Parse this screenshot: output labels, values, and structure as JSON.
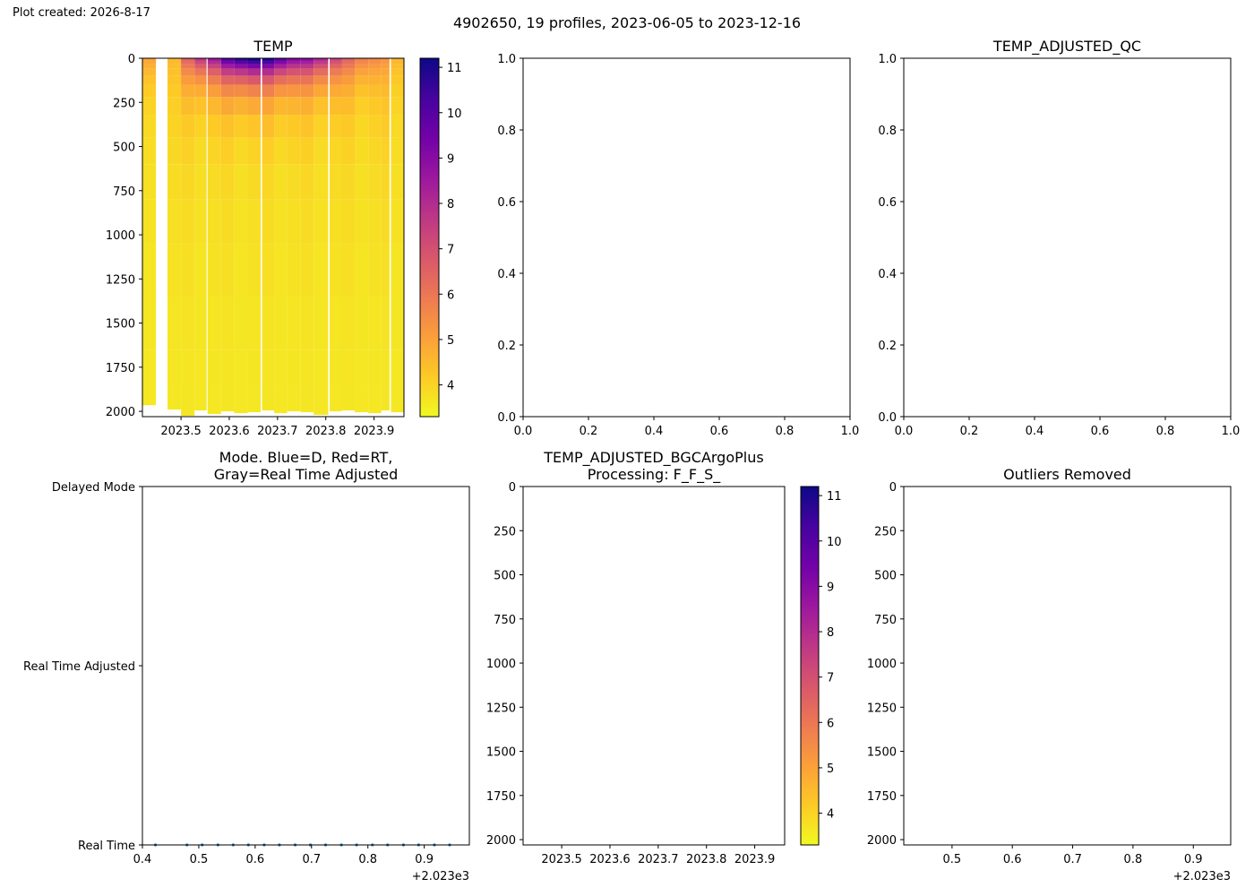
{
  "page": {
    "created": "Plot created: 2026-8-17",
    "suptitle": "4902650, 19 profiles, 2023-06-05 to 2023-12-16"
  },
  "colormap_stops": [
    "#f0f921",
    "#fdca26",
    "#fb9f3a",
    "#ed7953",
    "#d8576b",
    "#bd3786",
    "#9c179e",
    "#7201a8",
    "#46039f",
    "#0d0887"
  ],
  "chart_data": [
    {
      "id": "temp",
      "type": "heatmap",
      "title": "TEMP",
      "xlim": [
        2023.42,
        2023.962
      ],
      "ylim": [
        2030,
        0
      ],
      "xticks": [
        2023.5,
        2023.6,
        2023.7,
        2023.8,
        2023.9
      ],
      "xticklabels": [
        "2023.5",
        "2023.6",
        "2023.7",
        "2023.8",
        "2023.9"
      ],
      "yticks": [
        0,
        250,
        500,
        750,
        1000,
        1250,
        1500,
        1750,
        2000
      ],
      "yticklabels": [
        "0",
        "250",
        "500",
        "750",
        "1000",
        "1250",
        "1500",
        "1750",
        "2000"
      ],
      "colorbar": {
        "min": 3.3,
        "max": 11.2,
        "ticks": [
          4,
          5,
          6,
          7,
          8,
          9,
          10,
          11
        ],
        "ticklabels": [
          "4",
          "5",
          "6",
          "7",
          "8",
          "9",
          "10",
          "11"
        ]
      },
      "profiles": [
        {
          "time": 2023.423,
          "x0": 2023.42,
          "x1": 2023.448,
          "maxdepth": 1965,
          "surface": 4.6
        },
        {
          "time": 2023.479,
          "x0": 2023.472,
          "x1": 2023.5,
          "maxdepth": 1990,
          "surface": 3.9
        },
        {
          "time": 2023.506,
          "x0": 2023.5,
          "x1": 2023.528,
          "maxdepth": 2025,
          "surface": 5.8
        },
        {
          "time": 2023.534,
          "x0": 2023.528,
          "x1": 2023.553,
          "maxdepth": 1995,
          "surface": 7.5
        },
        {
          "time": 2023.561,
          "x0": 2023.555,
          "x1": 2023.583,
          "maxdepth": 2015,
          "surface": 8.2
        },
        {
          "time": 2023.588,
          "x0": 2023.583,
          "x1": 2023.61,
          "maxdepth": 2000,
          "surface": 9.6
        },
        {
          "time": 2023.616,
          "x0": 2023.61,
          "x1": 2023.638,
          "maxdepth": 2010,
          "surface": 10.8
        },
        {
          "time": 2023.643,
          "x0": 2023.638,
          "x1": 2023.665,
          "maxdepth": 2005,
          "surface": 11.0
        },
        {
          "time": 2023.671,
          "x0": 2023.668,
          "x1": 2023.693,
          "maxdepth": 1995,
          "surface": 10.5
        },
        {
          "time": 2023.698,
          "x0": 2023.693,
          "x1": 2023.72,
          "maxdepth": 2010,
          "surface": 9.9
        },
        {
          "time": 2023.725,
          "x0": 2023.72,
          "x1": 2023.748,
          "maxdepth": 2000,
          "surface": 8.8
        },
        {
          "time": 2023.753,
          "x0": 2023.748,
          "x1": 2023.775,
          "maxdepth": 2005,
          "surface": 8.4
        },
        {
          "time": 2023.78,
          "x0": 2023.775,
          "x1": 2023.805,
          "maxdepth": 2020,
          "surface": 8.0
        },
        {
          "time": 2023.808,
          "x0": 2023.808,
          "x1": 2023.833,
          "maxdepth": 2000,
          "surface": 6.9
        },
        {
          "time": 2023.835,
          "x0": 2023.833,
          "x1": 2023.86,
          "maxdepth": 1995,
          "surface": 5.8
        },
        {
          "time": 2023.863,
          "x0": 2023.86,
          "x1": 2023.888,
          "maxdepth": 2005,
          "surface": 5.5
        },
        {
          "time": 2023.89,
          "x0": 2023.888,
          "x1": 2023.915,
          "maxdepth": 2010,
          "surface": 5.0
        },
        {
          "time": 2023.918,
          "x0": 2023.915,
          "x1": 2023.932,
          "maxdepth": 1995,
          "surface": 4.5
        },
        {
          "time": 2023.945,
          "x0": 2023.935,
          "x1": 2023.962,
          "maxdepth": 2005,
          "surface": 4.2
        }
      ]
    },
    {
      "id": "qc1",
      "type": "line",
      "title": "",
      "xlim": [
        0,
        1
      ],
      "ylim": [
        0,
        1
      ],
      "xticks": [
        0,
        0.2,
        0.4,
        0.6,
        0.8,
        1.0
      ],
      "xticklabels": [
        "0.0",
        "0.2",
        "0.4",
        "0.6",
        "0.8",
        "1.0"
      ],
      "yticks": [
        0,
        0.2,
        0.4,
        0.6,
        0.8,
        1.0
      ],
      "yticklabels": [
        "0.0",
        "0.2",
        "0.4",
        "0.6",
        "0.8",
        "1.0"
      ]
    },
    {
      "id": "qc2",
      "type": "line",
      "title": "TEMP_ADJUSTED_QC",
      "xlim": [
        0,
        1
      ],
      "ylim": [
        0,
        1
      ],
      "xticks": [
        0,
        0.2,
        0.4,
        0.6,
        0.8,
        1.0
      ],
      "xticklabels": [
        "0.0",
        "0.2",
        "0.4",
        "0.6",
        "0.8",
        "1.0"
      ],
      "yticks": [
        0,
        0.2,
        0.4,
        0.6,
        0.8,
        1.0
      ],
      "yticklabels": [
        "0.0",
        "0.2",
        "0.4",
        "0.6",
        "0.8",
        "1.0"
      ]
    },
    {
      "id": "mode",
      "type": "scatter",
      "title": [
        "Mode. Blue=D, Red=RT,",
        "Gray=Real Time Adjusted"
      ],
      "xlim": [
        0.4,
        0.98
      ],
      "ylim": [
        0,
        2
      ],
      "xticks": [
        0.4,
        0.5,
        0.6,
        0.7,
        0.8,
        0.9
      ],
      "xticklabels": [
        "0.4",
        "0.5",
        "0.6",
        "0.7",
        "0.8",
        "0.9"
      ],
      "xoffset_label": "+2.023e3",
      "yticks": [
        0,
        1,
        2
      ],
      "yticklabels": [
        "Real Time",
        "Real Time Adjusted",
        "Delayed Mode"
      ],
      "point_color": "#1f77b4",
      "x": [
        0.423,
        0.479,
        0.506,
        0.534,
        0.561,
        0.588,
        0.616,
        0.643,
        0.671,
        0.698,
        0.725,
        0.753,
        0.78,
        0.808,
        0.835,
        0.863,
        0.89,
        0.918,
        0.945
      ],
      "y": [
        0,
        0,
        0,
        0,
        0,
        0,
        0,
        0,
        0,
        0,
        0,
        0,
        0,
        0,
        0,
        0,
        0,
        0,
        0
      ]
    },
    {
      "id": "adjusted",
      "type": "heatmap",
      "title": [
        "TEMP_ADJUSTED_BGCArgoPlus",
        "Processing: F_F_S_"
      ],
      "xlim": [
        2023.42,
        2023.962
      ],
      "ylim": [
        2030,
        0
      ],
      "xticks": [
        2023.5,
        2023.6,
        2023.7,
        2023.8,
        2023.9
      ],
      "xticklabels": [
        "2023.5",
        "2023.6",
        "2023.7",
        "2023.8",
        "2023.9"
      ],
      "yticks": [
        0,
        250,
        500,
        750,
        1000,
        1250,
        1500,
        1750,
        2000
      ],
      "yticklabels": [
        "0",
        "250",
        "500",
        "750",
        "1000",
        "1250",
        "1500",
        "1750",
        "2000"
      ],
      "colorbar": {
        "min": 3.3,
        "max": 11.2,
        "ticks": [
          4,
          5,
          6,
          7,
          8,
          9,
          10,
          11
        ],
        "ticklabels": [
          "4",
          "5",
          "6",
          "7",
          "8",
          "9",
          "10",
          "11"
        ]
      }
    },
    {
      "id": "outliers",
      "type": "heatmap",
      "title": "Outliers Removed",
      "xlim": [
        0.42,
        0.962
      ],
      "ylim": [
        2030,
        0
      ],
      "xticks": [
        0.5,
        0.6,
        0.7,
        0.8,
        0.9
      ],
      "xticklabels": [
        "0.5",
        "0.6",
        "0.7",
        "0.8",
        "0.9"
      ],
      "xoffset_label": "+2.023e3",
      "yticks": [
        0,
        250,
        500,
        750,
        1000,
        1250,
        1500,
        1750,
        2000
      ],
      "yticklabels": [
        "0",
        "250",
        "500",
        "750",
        "1000",
        "1250",
        "1500",
        "1750",
        "2000"
      ]
    }
  ]
}
